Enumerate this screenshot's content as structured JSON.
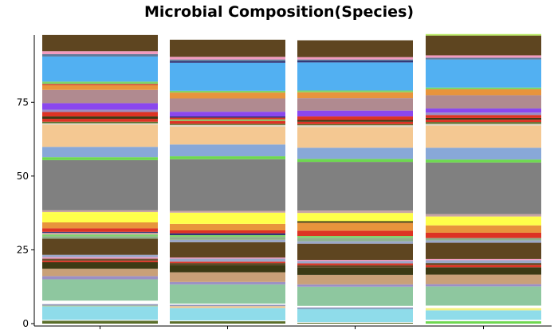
{
  "chart_data": {
    "type": "bar",
    "stacked": true,
    "title": "Microbial Composition(Species)",
    "xlabel": "",
    "ylabel": "",
    "ylim": [
      0,
      100
    ],
    "yticks": [
      0,
      25,
      50,
      75
    ],
    "grid": false,
    "legend": "none",
    "categories": [
      "",
      "",
      "",
      ""
    ],
    "segments": [
      [
        {
          "color": "#5a6e2a",
          "value": 1
        },
        {
          "color": "#ffffff",
          "value": 0.3
        },
        {
          "color": "#8fdcea",
          "value": 4.5
        },
        {
          "color": "#b7d59c",
          "value": 0.3
        },
        {
          "color": "#8a8fb5",
          "value": 0.5
        },
        {
          "color": "#ffffff",
          "value": 1.2
        },
        {
          "color": "#8ec79f",
          "value": 7.2
        },
        {
          "color": "#9b8fc5",
          "value": 1.1
        },
        {
          "color": "#c9a078",
          "value": 2.5
        },
        {
          "color": "#3c3a14",
          "value": 2.2
        },
        {
          "color": "#dd3324",
          "value": 0.5
        },
        {
          "color": "#6e5030",
          "value": 0.7
        },
        {
          "color": "#f29bbf",
          "value": 0.5
        },
        {
          "color": "#9ba7c9",
          "value": 0.8
        },
        {
          "color": "#5e4520",
          "value": 5.5
        },
        {
          "color": "#8fb08c",
          "value": 0.8
        },
        {
          "color": "#7fd56a",
          "value": 0.6
        },
        {
          "color": "#c9a4a4",
          "value": 0.6
        },
        {
          "color": "#2a2a70",
          "value": 0.3
        },
        {
          "color": "#dd3324",
          "value": 1.2
        },
        {
          "color": "#e8943c",
          "value": 2
        },
        {
          "color": "#ffff4a",
          "value": 3
        },
        {
          "color": "#ffff4a",
          "value": 0.5
        },
        {
          "color": "#c9a4a4",
          "value": 0.6
        },
        {
          "color": "#808080",
          "value": 17
        },
        {
          "color": "#6ed850",
          "value": 1
        },
        {
          "color": "#88a8d8",
          "value": 3.5
        },
        {
          "color": "#f4c892",
          "value": 7.5
        },
        {
          "color": "#e0d8c8",
          "value": 0.5
        },
        {
          "color": "#5a6e2a",
          "value": 0.5
        },
        {
          "color": "#dd3324",
          "value": 1
        },
        {
          "color": "#3c3a14",
          "value": 0.8
        },
        {
          "color": "#dd3324",
          "value": 1.5
        },
        {
          "color": "#9b8fc5",
          "value": 0.8
        },
        {
          "color": "#8a47ee",
          "value": 2.2
        },
        {
          "color": "#b08a90",
          "value": 4.5
        },
        {
          "color": "#e8943c",
          "value": 1.6
        },
        {
          "color": "#dd3324",
          "value": 0.4
        },
        {
          "color": "#7fd56a",
          "value": 0.8
        },
        {
          "color": "#52b0f2",
          "value": 8.5
        },
        {
          "color": "#5e7a9a",
          "value": 0.8
        },
        {
          "color": "#f29bbf",
          "value": 1
        },
        {
          "color": "#5e4520",
          "value": 5.5
        }
      ],
      [
        {
          "color": "#5a6e2a",
          "value": 0.8
        },
        {
          "color": "#ffffff",
          "value": 0.3
        },
        {
          "color": "#8fdcea",
          "value": 4.2
        },
        {
          "color": "#f4c892",
          "value": 0.6
        },
        {
          "color": "#8a8fb5",
          "value": 0.5
        },
        {
          "color": "#ffffff",
          "value": 0.4
        },
        {
          "color": "#8ec79f",
          "value": 6.5
        },
        {
          "color": "#9b8fc5",
          "value": 0.8
        },
        {
          "color": "#c9a078",
          "value": 3.3
        },
        {
          "color": "#3c3a14",
          "value": 2.5
        },
        {
          "color": "#5e4520",
          "value": 0.6
        },
        {
          "color": "#dd3324",
          "value": 0.5
        },
        {
          "color": "#9ba7c9",
          "value": 1
        },
        {
          "color": "#f29bbf",
          "value": 0.4
        },
        {
          "color": "#5e4520",
          "value": 5.2
        },
        {
          "color": "#9ba7c9",
          "value": 0.8
        },
        {
          "color": "#8fb08c",
          "value": 1
        },
        {
          "color": "#7fd56a",
          "value": 0.6
        },
        {
          "color": "#2a2a70",
          "value": 0.6
        },
        {
          "color": "#dd3324",
          "value": 1
        },
        {
          "color": "#e8943c",
          "value": 2.2
        },
        {
          "color": "#ffff4a",
          "value": 3.8
        },
        {
          "color": "#c9a4a4",
          "value": 0.6
        },
        {
          "color": "#808080",
          "value": 17.5
        },
        {
          "color": "#6ed850",
          "value": 1
        },
        {
          "color": "#88a8d8",
          "value": 4
        },
        {
          "color": "#f4c892",
          "value": 6
        },
        {
          "color": "#e0d8c8",
          "value": 0.6
        },
        {
          "color": "#5a6e2a",
          "value": 0.4
        },
        {
          "color": "#dd3324",
          "value": 1
        },
        {
          "color": "#7fd56a",
          "value": 0.5
        },
        {
          "color": "#dd3324",
          "value": 0.6
        },
        {
          "color": "#2a2a70",
          "value": 0.4
        },
        {
          "color": "#8a47ee",
          "value": 1.6
        },
        {
          "color": "#b08a90",
          "value": 4.5
        },
        {
          "color": "#e8943c",
          "value": 2
        },
        {
          "color": "#7fd56a",
          "value": 0.6
        },
        {
          "color": "#52b0f2",
          "value": 9.5
        },
        {
          "color": "#2a2a70",
          "value": 0.5
        },
        {
          "color": "#5e7a9a",
          "value": 0.6
        },
        {
          "color": "#f29bbf",
          "value": 0.9
        },
        {
          "color": "#5e4520",
          "value": 5.8
        }
      ],
      [
        {
          "color": "#5a6e2a",
          "value": 0.3
        },
        {
          "color": "#ffffff",
          "value": 0.2
        },
        {
          "color": "#8fdcea",
          "value": 4.5
        },
        {
          "color": "#8a8fb5",
          "value": 0.5
        },
        {
          "color": "#ffffff",
          "value": 0.5
        },
        {
          "color": "#8ec79f",
          "value": 6.5
        },
        {
          "color": "#9b8fc5",
          "value": 0.8
        },
        {
          "color": "#c9a078",
          "value": 3.2
        },
        {
          "color": "#3c3a14",
          "value": 2.5
        },
        {
          "color": "#5e4520",
          "value": 0.8
        },
        {
          "color": "#dd3324",
          "value": 0.6
        },
        {
          "color": "#9ba7c9",
          "value": 0.8
        },
        {
          "color": "#f29bbf",
          "value": 0.4
        },
        {
          "color": "#5e4520",
          "value": 5.5
        },
        {
          "color": "#9ba7c9",
          "value": 0.8
        },
        {
          "color": "#8fb08c",
          "value": 1.2
        },
        {
          "color": "#7fd56a",
          "value": 0.6
        },
        {
          "color": "#dd3324",
          "value": 1.8
        },
        {
          "color": "#e8943c",
          "value": 2.7
        },
        {
          "color": "#3c3a14",
          "value": 0.5
        },
        {
          "color": "#ffff4a",
          "value": 2.8
        },
        {
          "color": "#c9a4a4",
          "value": 0.8
        },
        {
          "color": "#808080",
          "value": 16.5
        },
        {
          "color": "#6ed850",
          "value": 1
        },
        {
          "color": "#88a8d8",
          "value": 3.8
        },
        {
          "color": "#f4c892",
          "value": 7
        },
        {
          "color": "#e0d8c8",
          "value": 0.6
        },
        {
          "color": "#5a6e2a",
          "value": 0.4
        },
        {
          "color": "#dd3324",
          "value": 0.8
        },
        {
          "color": "#3c3a14",
          "value": 0.6
        },
        {
          "color": "#dd3324",
          "value": 1.2
        },
        {
          "color": "#8a47ee",
          "value": 2
        },
        {
          "color": "#b08a90",
          "value": 4.2
        },
        {
          "color": "#e8943c",
          "value": 2
        },
        {
          "color": "#7fd56a",
          "value": 0.6
        },
        {
          "color": "#52b0f2",
          "value": 9.5
        },
        {
          "color": "#2a2a70",
          "value": 0.5
        },
        {
          "color": "#5e7a9a",
          "value": 0.5
        },
        {
          "color": "#f29bbf",
          "value": 0.8
        },
        {
          "color": "#5e4520",
          "value": 5.7
        }
      ],
      [
        {
          "color": "#6ed850",
          "value": 0.8
        },
        {
          "color": "#ffffff",
          "value": 0.5
        },
        {
          "color": "#8fdcea",
          "value": 3.2
        },
        {
          "color": "#f4f080",
          "value": 0.8
        },
        {
          "color": "#ffffff",
          "value": 0.8
        },
        {
          "color": "#8ec79f",
          "value": 6.5
        },
        {
          "color": "#9b8fc5",
          "value": 0.8
        },
        {
          "color": "#c9a078",
          "value": 3.2
        },
        {
          "color": "#3c3a14",
          "value": 2.5
        },
        {
          "color": "#dd3324",
          "value": 0.8
        },
        {
          "color": "#5e4520",
          "value": 0.6
        },
        {
          "color": "#9ba7c9",
          "value": 1
        },
        {
          "color": "#f29bbf",
          "value": 0.4
        },
        {
          "color": "#5e4520",
          "value": 5.5
        },
        {
          "color": "#9ba7c9",
          "value": 0.8
        },
        {
          "color": "#8fb08c",
          "value": 0.8
        },
        {
          "color": "#dd3324",
          "value": 1.8
        },
        {
          "color": "#e8943c",
          "value": 2.5
        },
        {
          "color": "#ffff4a",
          "value": 3
        },
        {
          "color": "#c9a4a4",
          "value": 0.8
        },
        {
          "color": "#808080",
          "value": 17.5
        },
        {
          "color": "#6ed850",
          "value": 1
        },
        {
          "color": "#88a8d8",
          "value": 4
        },
        {
          "color": "#f4c892",
          "value": 7.5
        },
        {
          "color": "#e0d8c8",
          "value": 0.6
        },
        {
          "color": "#5a6e2a",
          "value": 0.6
        },
        {
          "color": "#dd3324",
          "value": 0.8
        },
        {
          "color": "#3c3a14",
          "value": 0.6
        },
        {
          "color": "#dd3324",
          "value": 1
        },
        {
          "color": "#9b8fc5",
          "value": 0.8
        },
        {
          "color": "#8a47ee",
          "value": 1.4
        },
        {
          "color": "#b08a90",
          "value": 4.5
        },
        {
          "color": "#e8943c",
          "value": 2
        },
        {
          "color": "#7fd56a",
          "value": 0.6
        },
        {
          "color": "#52b0f2",
          "value": 9.5
        },
        {
          "color": "#5e7a9a",
          "value": 0.6
        },
        {
          "color": "#f29bbf",
          "value": 0.8
        },
        {
          "color": "#5e4520",
          "value": 6.7
        },
        {
          "color": "#b5e85a",
          "value": 0.5
        }
      ]
    ]
  }
}
